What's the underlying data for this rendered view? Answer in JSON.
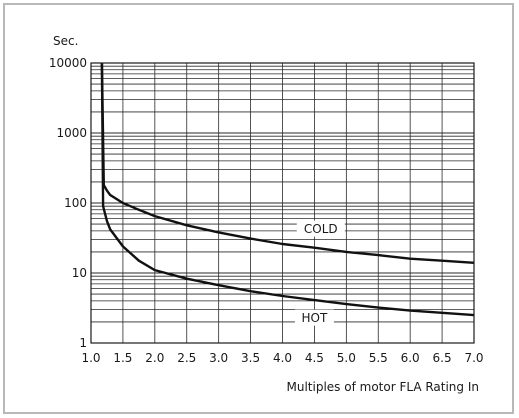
{
  "chart_data": {
    "type": "line",
    "xlabel": "Multiples of motor FLA Rating In",
    "ylabel": "Sec.",
    "xlim": [
      1.0,
      7.0
    ],
    "ylim": [
      1,
      10000
    ],
    "yscale": "log",
    "grid": true,
    "legend": "none",
    "x_tick_labels": [
      "1.0",
      "1.5",
      "2.0",
      "2.5",
      "3.0",
      "3.5",
      "4.0",
      "4.5",
      "5.0",
      "5.5",
      "6.0",
      "6.5",
      "7.0"
    ],
    "y_tick_labels": [
      "1",
      "10",
      "100",
      "1000",
      "10000"
    ],
    "series": [
      {
        "name": "COLD",
        "color": "#111111",
        "points": [
          [
            1.17,
            10000
          ],
          [
            1.2,
            180
          ],
          [
            1.25,
            150
          ],
          [
            1.3,
            130
          ],
          [
            1.5,
            100
          ],
          [
            1.75,
            80
          ],
          [
            2.0,
            65
          ],
          [
            2.5,
            48
          ],
          [
            3.0,
            38
          ],
          [
            3.5,
            31
          ],
          [
            4.0,
            26
          ],
          [
            4.5,
            23
          ],
          [
            5.0,
            20
          ],
          [
            5.5,
            18
          ],
          [
            6.0,
            16
          ],
          [
            6.5,
            15
          ],
          [
            7.0,
            14
          ]
        ]
      },
      {
        "name": "HOT",
        "color": "#111111",
        "points": [
          [
            1.17,
            10000
          ],
          [
            1.19,
            90
          ],
          [
            1.25,
            55
          ],
          [
            1.3,
            42
          ],
          [
            1.5,
            24
          ],
          [
            1.75,
            15
          ],
          [
            2.0,
            11
          ],
          [
            2.5,
            8.3
          ],
          [
            3.0,
            6.7
          ],
          [
            3.5,
            5.5
          ],
          [
            4.0,
            4.7
          ],
          [
            4.5,
            4.1
          ],
          [
            5.0,
            3.6
          ],
          [
            5.5,
            3.2
          ],
          [
            6.0,
            2.9
          ],
          [
            6.5,
            2.7
          ],
          [
            7.0,
            2.5
          ]
        ]
      }
    ],
    "series_labels": [
      {
        "text": "COLD",
        "x": 4.6,
        "y": 43
      },
      {
        "text": "HOT",
        "x": 4.5,
        "y": 2.3
      }
    ]
  }
}
